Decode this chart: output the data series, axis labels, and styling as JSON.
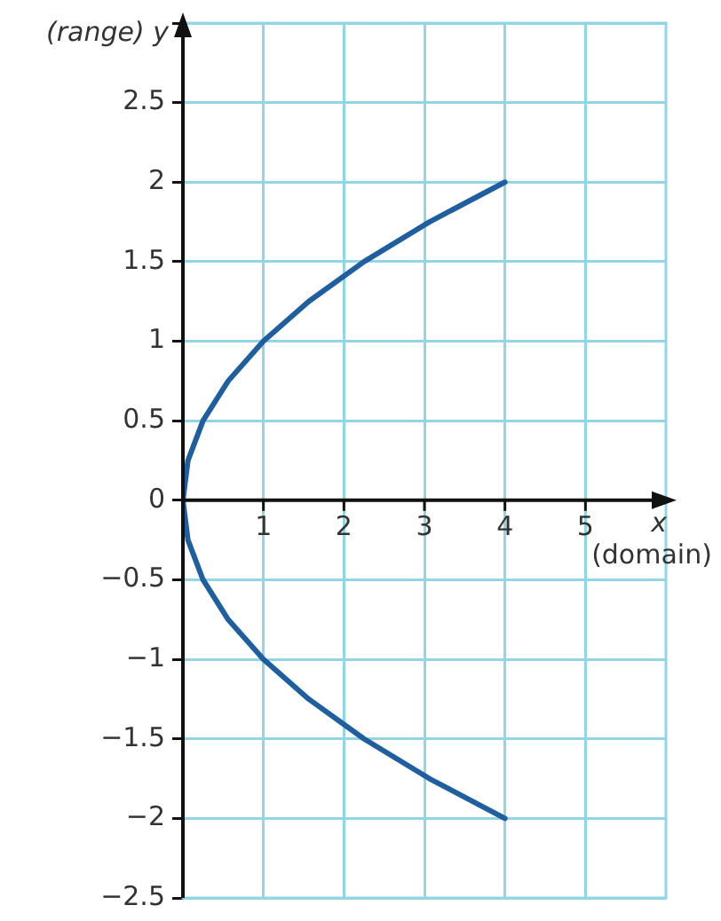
{
  "chart_data": {
    "type": "line",
    "ylabel": "(range) y",
    "xlabel": "x",
    "annotations": [
      "(domain)"
    ],
    "series": [
      {
        "color": "#1f5fa0",
        "x": [
          4,
          3.0625,
          2.25,
          1.5625,
          1,
          0.5625,
          0.25,
          0.0625,
          0,
          0.0625,
          0.25,
          0.5625,
          1,
          1.5625,
          2.25,
          3.0625,
          4
        ],
        "values": [
          -2,
          -1.75,
          -1.5,
          -1.25,
          -1,
          -0.75,
          -0.5,
          -0.25,
          0,
          0.25,
          0.5,
          0.75,
          1,
          1.25,
          1.5,
          1.75,
          2
        ]
      }
    ],
    "xlim": [
      0,
      6
    ],
    "xticks": [
      1,
      2,
      3,
      4,
      5
    ],
    "ylim": [
      -2.5,
      3
    ],
    "yticks": [
      -2.5,
      -2,
      -1.5,
      -1,
      -0.5,
      0,
      0.5,
      1,
      1.5,
      2,
      2.5,
      {
        "value": 3,
        "label": null
      }
    ],
    "grid": true,
    "legend": false,
    "marker": "none",
    "line_style": "solid"
  }
}
